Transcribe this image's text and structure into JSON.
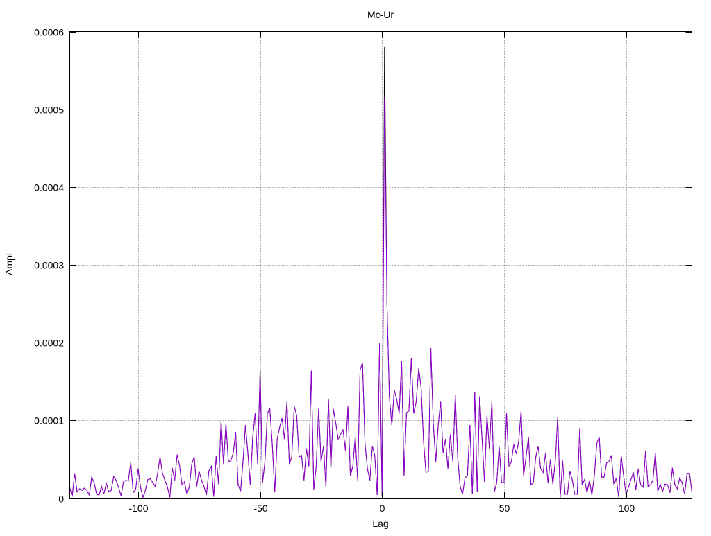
{
  "chart_data": {
    "type": "line",
    "title": "Mc-Ur",
    "xlabel": "Lag",
    "ylabel": "Ampl",
    "xlim": [
      -128,
      127
    ],
    "ylim": [
      0,
      0.0006
    ],
    "grid": true,
    "legend": "none",
    "x_ticks": [
      "-100",
      "-50",
      "0",
      "50",
      "100"
    ],
    "x_tick_values": [
      -100,
      -50,
      0,
      50,
      100
    ],
    "y_ticks": [
      "0",
      "0.0001",
      "0.0002",
      "0.0003",
      "0.0004",
      "0.0005",
      "0.0006"
    ],
    "y_tick_values": [
      0,
      0.0001,
      0.0002,
      0.0003,
      0.0004,
      0.0005,
      0.0006
    ],
    "x": {
      "start": -128,
      "step": 1
    },
    "series": [
      {
        "color": "#000000",
        "values": [
          1.4e-05,
          2e-06,
          3.2e-05,
          8e-06,
          1.2e-05,
          1e-05,
          1.3e-05,
          1e-05,
          4e-06,
          2.7e-05,
          2e-05,
          5e-06,
          4e-06,
          1.5e-05,
          6e-06,
          1.9e-05,
          8e-06,
          1e-05,
          2.8e-05,
          2.3e-05,
          1.4e-05,
          3e-06,
          2.1e-05,
          2.3e-05,
          2.2e-05,
          4.6e-05,
          7e-06,
          1.1e-05,
          3.8e-05,
          1.4e-05,
          1e-06,
          1e-05,
          2.4e-05,
          2.5e-05,
          2e-05,
          1.5e-05,
          3.2e-05,
          5.3e-05,
          3.2e-05,
          2.3e-05,
          1.5e-05,
          1e-06,
          3.9e-05,
          2.3e-05,
          5.6e-05,
          4.2e-05,
          1.7e-05,
          2.1e-05,
          5e-06,
          1.5e-05,
          4.4e-05,
          5.3e-05,
          1.5e-05,
          3.5e-05,
          2.3e-05,
          1.5e-05,
          4e-06,
          3.5e-05,
          4.1e-05,
          2e-06,
          5.4e-05,
          1.8e-05,
          9.9e-05,
          4.4e-05,
          9.6e-05,
          4.7e-05,
          4.8e-05,
          5.8e-05,
          8.5e-05,
          1.7e-05,
          9e-06,
          4.7e-05,
          9.4e-05,
          5.8e-05,
          1.7e-05,
          7.9e-05,
          0.000109,
          4.4e-05,
          0.000165,
          2e-05,
          4.7e-05,
          0.000109,
          0.000115,
          7e-05,
          8e-06,
          7.6e-05,
          9.1e-05,
          0.000103,
          7.6e-05,
          0.000124,
          4.4e-05,
          5.3e-05,
          0.000118,
          0.000106,
          5.3e-05,
          5.5e-05,
          2.3e-05,
          6.4e-05,
          4.1e-05,
          0.000164,
          1.1e-05,
          4.1e-05,
          0.000115,
          4.7e-05,
          6.7e-05,
          1.4e-05,
          0.000128,
          3.8e-05,
          0.000115,
          9.7e-05,
          7.6e-05,
          8.2e-05,
          8.8e-05,
          6.1e-05,
          0.000118,
          2.9e-05,
          4.1e-05,
          7.9e-05,
          2.3e-05,
          0.000165,
          0.000174,
          7e-05,
          3.8e-05,
          2.3e-05,
          6.7e-05,
          5.5e-05,
          4e-06,
          0.0002,
          3e-06,
          0.00058,
          0.00025,
          0.00013,
          9.4e-05,
          0.000139,
          0.000127,
          0.000109,
          0.000177,
          2.9e-05,
          0.00011,
          0.000112,
          0.00018,
          0.000109,
          0.000124,
          0.000167,
          0.000142,
          7.3e-05,
          3.3e-05,
          3.5e-05,
          0.000193,
          9.7e-05,
          4.7e-05,
          9.4e-05,
          0.000124,
          5.8e-05,
          7.6e-05,
          3.8e-05,
          8.2e-05,
          4.7e-05,
          0.000133,
          5.3e-05,
          1.5e-05,
          5e-06,
          2.6e-05,
          2.9e-05,
          9.4e-05,
          5e-06,
          0.000136,
          8e-06,
          0.000131,
          7.6e-05,
          2.1e-05,
          0.000106,
          6.4e-05,
          0.000124,
          8e-06,
          2e-05,
          6.7e-05,
          2e-05,
          2e-05,
          0.000109,
          4.1e-05,
          4.7e-05,
          6.9e-05,
          5.7e-05,
          7.3e-05,
          0.000112,
          2.9e-05,
          5.3e-05,
          7.9e-05,
          1.7e-05,
          2e-05,
          5.3e-05,
          6.7e-05,
          3.8e-05,
          3.3e-05,
          5.8e-05,
          2e-05,
          5e-05,
          1.8e-05,
          4.7e-05,
          0.000104,
          1e-06,
          4.8e-05,
          5e-06,
          5e-06,
          3.5e-05,
          2.3e-05,
          5e-06,
          5e-06,
          9e-05,
          1.7e-05,
          2.4e-05,
          7e-06,
          2.3e-05,
          4e-06,
          2.9e-05,
          7e-05,
          7.9e-05,
          2.7e-05,
          2.7e-05,
          4.5e-05,
          4.7e-05,
          5.5e-05,
          1.7e-05,
          2.6e-05,
          1e-06,
          5.5e-05,
          2.9e-05,
          5e-06,
          1.4e-05,
          2.4e-05,
          3.3e-05,
          1.1e-05,
          3.8e-05,
          1.7e-05,
          1.4e-05,
          6e-05,
          1.5e-05,
          1.7e-05,
          2.3e-05,
          5.8e-05,
          9e-06,
          1.8e-05,
          9e-06,
          1.8e-05,
          1.7e-05,
          7e-06,
          3.9e-05,
          1.7e-05,
          1.2e-05,
          2.6e-05,
          2e-05,
          5e-06,
          3.2e-05,
          3.2e-05,
          8e-06
        ]
      },
      {
        "color": "#9400d3",
        "values": [
          1.4e-05,
          2e-06,
          3.2e-05,
          8e-06,
          1.2e-05,
          1e-05,
          1.3e-05,
          1e-05,
          4e-06,
          2.7e-05,
          2e-05,
          5e-06,
          4e-06,
          1.5e-05,
          6e-06,
          1.9e-05,
          8e-06,
          1e-05,
          2.8e-05,
          2.3e-05,
          1.4e-05,
          3e-06,
          2.1e-05,
          2.3e-05,
          2.2e-05,
          4.6e-05,
          7e-06,
          1.1e-05,
          3.8e-05,
          1.4e-05,
          1e-06,
          1e-05,
          2.4e-05,
          2.5e-05,
          2e-05,
          1.5e-05,
          3.2e-05,
          5.3e-05,
          3.2e-05,
          2.3e-05,
          1.5e-05,
          1e-06,
          3.9e-05,
          2.3e-05,
          5.6e-05,
          4.2e-05,
          1.7e-05,
          2.1e-05,
          5e-06,
          1.5e-05,
          4.4e-05,
          5.3e-05,
          1.5e-05,
          3.5e-05,
          2.3e-05,
          1.5e-05,
          4e-06,
          3.5e-05,
          4.1e-05,
          2e-06,
          5.4e-05,
          1.8e-05,
          9.9e-05,
          4.4e-05,
          9.6e-05,
          4.7e-05,
          4.8e-05,
          5.8e-05,
          8.5e-05,
          1.7e-05,
          9e-06,
          4.7e-05,
          9.4e-05,
          5.8e-05,
          1.7e-05,
          7.9e-05,
          0.000109,
          4.4e-05,
          0.000162,
          2e-05,
          4.7e-05,
          0.000109,
          0.000115,
          7e-05,
          8e-06,
          7.6e-05,
          9.1e-05,
          0.000103,
          7.6e-05,
          0.000124,
          4.4e-05,
          5.3e-05,
          0.000118,
          0.000106,
          5.3e-05,
          5.5e-05,
          2.3e-05,
          6.4e-05,
          4.1e-05,
          0.000164,
          1.1e-05,
          4.1e-05,
          0.000115,
          4.7e-05,
          6.7e-05,
          1.4e-05,
          0.000128,
          3.8e-05,
          0.000115,
          9.7e-05,
          7.6e-05,
          8.2e-05,
          8.8e-05,
          6.1e-05,
          0.000118,
          2.9e-05,
          4.1e-05,
          7.9e-05,
          2.3e-05,
          0.000165,
          0.000174,
          7e-05,
          3.8e-05,
          2.3e-05,
          6.7e-05,
          5.5e-05,
          4e-06,
          0.0002,
          3e-06,
          0.000515,
          0.00025,
          0.00013,
          9.4e-05,
          0.000139,
          0.000127,
          0.000109,
          0.000177,
          2.9e-05,
          0.00011,
          0.000112,
          0.00018,
          0.000109,
          0.000124,
          0.000167,
          0.000142,
          7.3e-05,
          3.3e-05,
          3.5e-05,
          0.000193,
          9.7e-05,
          4.7e-05,
          9.4e-05,
          0.000124,
          5.8e-05,
          7.6e-05,
          3.8e-05,
          8.2e-05,
          4.7e-05,
          0.000133,
          5.3e-05,
          1.5e-05,
          5e-06,
          2.6e-05,
          2.9e-05,
          9.4e-05,
          5e-06,
          0.000136,
          8e-06,
          0.000131,
          7.6e-05,
          2.1e-05,
          0.000106,
          6.4e-05,
          0.000124,
          8e-06,
          2e-05,
          6.7e-05,
          2e-05,
          2e-05,
          0.000109,
          4.1e-05,
          4.7e-05,
          6.9e-05,
          5.7e-05,
          7.3e-05,
          0.000112,
          2.9e-05,
          5.3e-05,
          7.9e-05,
          1.7e-05,
          2e-05,
          5.3e-05,
          6.7e-05,
          3.8e-05,
          3.3e-05,
          5.8e-05,
          2e-05,
          5e-05,
          1.8e-05,
          4.7e-05,
          0.000104,
          1e-06,
          4.8e-05,
          5e-06,
          5e-06,
          3.5e-05,
          2.3e-05,
          5e-06,
          5e-06,
          9e-05,
          1.7e-05,
          2.4e-05,
          7e-06,
          2.3e-05,
          4e-06,
          2.9e-05,
          7e-05,
          7.9e-05,
          2.7e-05,
          2.7e-05,
          4.5e-05,
          4.7e-05,
          5.5e-05,
          1.7e-05,
          2.6e-05,
          1e-06,
          5.5e-05,
          2.9e-05,
          5e-06,
          1.4e-05,
          2.4e-05,
          3.3e-05,
          1.1e-05,
          3.8e-05,
          1.7e-05,
          1.4e-05,
          6e-05,
          1.5e-05,
          1.7e-05,
          2.3e-05,
          5.8e-05,
          9e-06,
          1.8e-05,
          9e-06,
          1.8e-05,
          1.7e-05,
          7e-06,
          3.9e-05,
          1.7e-05,
          1.2e-05,
          2.6e-05,
          2e-05,
          5e-06,
          3.2e-05,
          3.2e-05,
          8e-06
        ]
      }
    ]
  }
}
